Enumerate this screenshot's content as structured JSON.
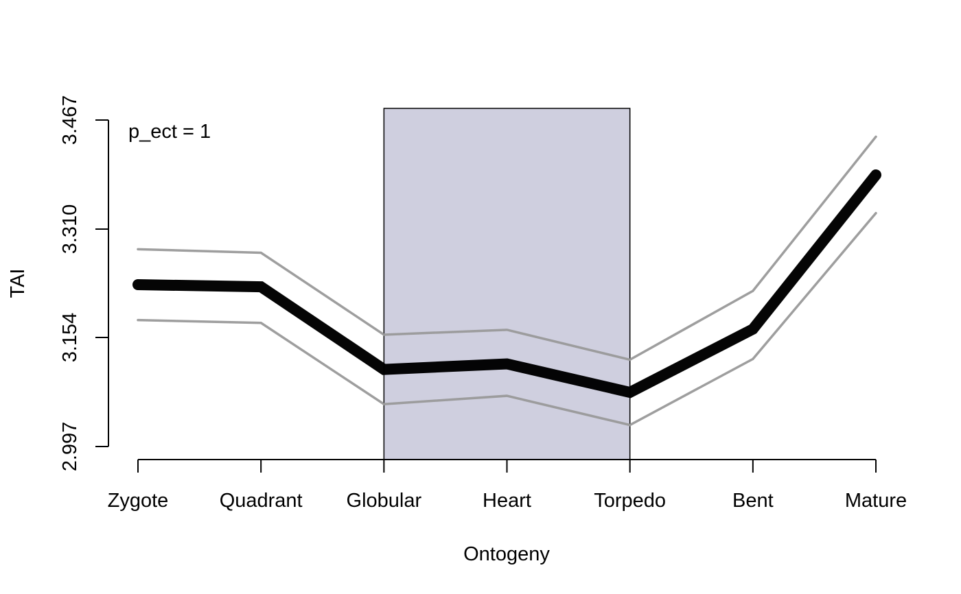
{
  "chart_data": {
    "type": "line",
    "title": "",
    "xlabel": "Ontogeny",
    "ylabel": "TAI",
    "categories": [
      "Zygote",
      "Quadrant",
      "Globular",
      "Heart",
      "Torpedo",
      "Bent",
      "Mature"
    ],
    "y_ticks": [
      "2.997",
      "3.154",
      "3.310",
      "3.467"
    ],
    "ylim": [
      2.997,
      3.467
    ],
    "series": [
      {
        "role": "mean",
        "values": [
          3.23,
          3.227,
          3.108,
          3.116,
          3.075,
          3.166,
          3.388
        ],
        "color": "#000000"
      },
      {
        "role": "upper",
        "values": [
          3.281,
          3.276,
          3.158,
          3.165,
          3.122,
          3.221,
          3.443
        ],
        "color": "#999999"
      },
      {
        "role": "lower",
        "values": [
          3.179,
          3.175,
          3.058,
          3.07,
          3.028,
          3.123,
          3.333
        ],
        "color": "#999999"
      }
    ],
    "highlight_region": {
      "from": "Globular",
      "to": "Torpedo",
      "color": "#cfcfdf"
    },
    "annotation": "p_ect = 1",
    "grid": false,
    "legend": "none"
  }
}
